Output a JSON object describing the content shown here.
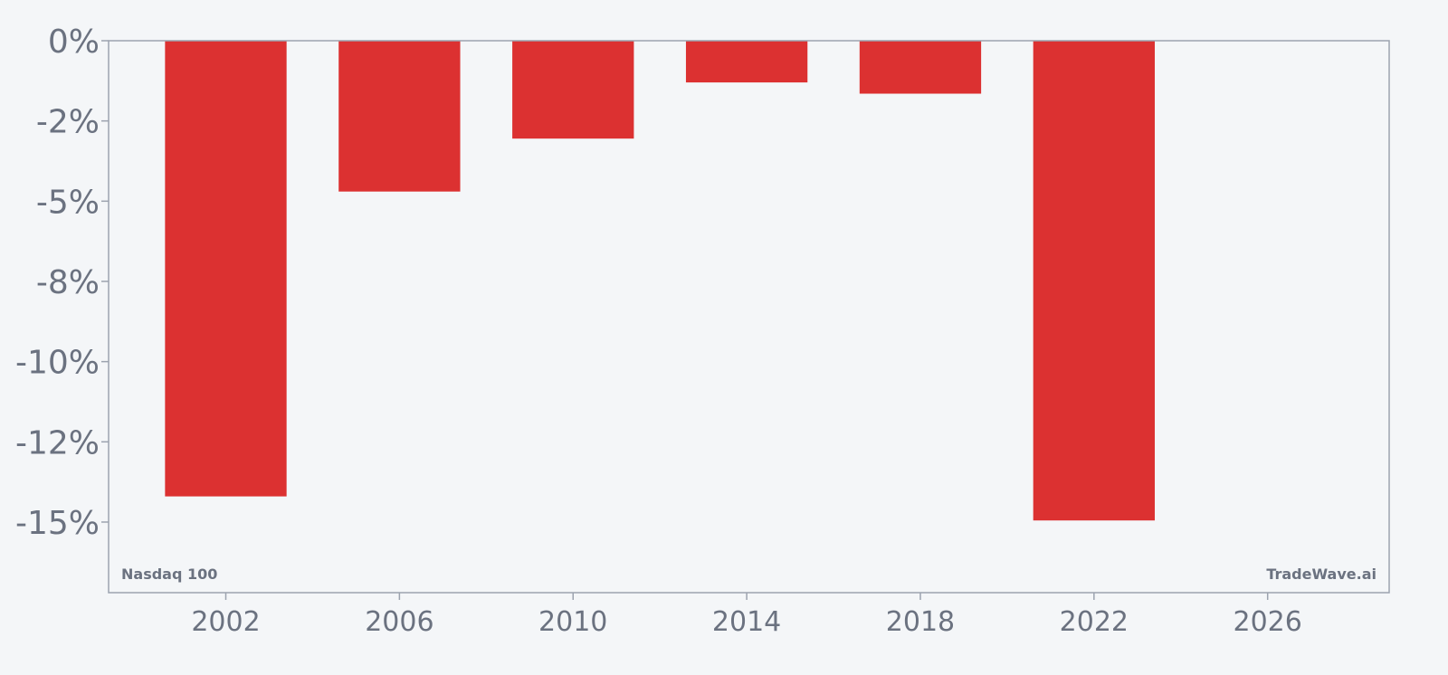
{
  "chart_data": {
    "type": "bar",
    "x": [
      2002,
      2006,
      2010,
      2014,
      2018,
      2022
    ],
    "values": [
      -14.2,
      -4.7,
      -3.05,
      -1.3,
      -1.65,
      -14.95
    ],
    "ylim": [
      -17.2,
      0
    ],
    "xlim": [
      1999.3,
      2028.8
    ],
    "bar_width_years": 2.8,
    "y_ticks": [
      0,
      -2.5,
      -5,
      -7.5,
      -10,
      -12.5,
      -15
    ],
    "y_tick_labels": [
      "0%",
      "-2%",
      "-5%",
      "-8%",
      "-10%",
      "-12%",
      "-15%"
    ],
    "x_ticks": [
      2002,
      2006,
      2010,
      2014,
      2018,
      2022,
      2026
    ],
    "x_tick_labels": [
      "2002",
      "2006",
      "2010",
      "2014",
      "2018",
      "2022",
      "2026"
    ],
    "title": "",
    "xlabel": "",
    "ylabel": "",
    "grid": false,
    "bar_color": "#dc3131",
    "axis_color": "#9ca3af",
    "text_color": "#6b7280"
  },
  "annotations": {
    "bottom_left": "Nasdaq 100",
    "bottom_right": "TradeWave.ai"
  }
}
